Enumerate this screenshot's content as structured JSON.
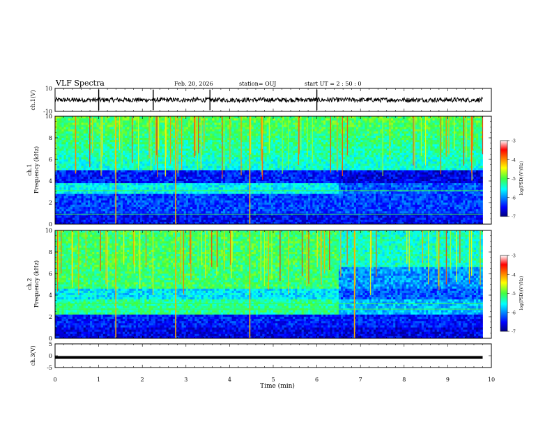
{
  "header": {
    "title": "VLF Spectra",
    "date": "Feb. 20, 2026",
    "station": "station= OUJ",
    "start": "start UT =  2 : 50 : 0"
  },
  "colors": {
    "background": "#ffffff",
    "axis": "#000000",
    "spectrogram_floor": "#000080"
  },
  "chart_data": [
    {
      "type": "line",
      "name": "waveform",
      "ylabel": "ch.1(V)",
      "ylim": [
        -10,
        10
      ],
      "yticks": [
        "10",
        "-10"
      ],
      "baseline": 0,
      "xlim": [
        0,
        10
      ],
      "spike_times": [
        1.0,
        2.25,
        3.55,
        6.0
      ],
      "grid": false
    },
    {
      "type": "heatmap",
      "name": "ch.1 spectrogram",
      "ylabel_line1": "ch.1",
      "ylabel_line2": "Frequency (kHz)",
      "ylim": [
        0,
        10
      ],
      "yticks": [
        "0",
        "2",
        "4",
        "6",
        "8",
        "10"
      ],
      "xlim": [
        0,
        9.8
      ],
      "colorbar_label": "log(PSD)(V²/Hz)",
      "colorbar_ticks": [
        "-3",
        "-4",
        "-5",
        "-6",
        "-7"
      ],
      "colorbar_range": [
        -7,
        -3
      ],
      "transition_time": 6.5,
      "bright_lines_time": [
        1.38,
        2.75,
        4.45
      ],
      "bright_lines_freq": [
        3.1,
        0.9
      ]
    },
    {
      "type": "heatmap",
      "name": "ch.2 spectrogram",
      "ylabel_line1": "ch.2",
      "ylabel_line2": "Frequency (kHz)",
      "ylim": [
        0,
        10
      ],
      "yticks": [
        "0",
        "2",
        "4",
        "6",
        "8",
        "10"
      ],
      "xlim": [
        0,
        9.8
      ],
      "colorbar_label": "log(PSD)(V²/Hz)",
      "colorbar_ticks": [
        "-3",
        "-4",
        "-5",
        "-6",
        "-7"
      ],
      "colorbar_range": [
        -7,
        -3
      ],
      "transition_time": 6.5,
      "bright_lines_time": [
        1.38,
        2.75,
        4.45,
        6.85
      ],
      "bright_lines_freq": [
        3.2,
        2.7
      ]
    },
    {
      "type": "line",
      "name": "ch.3 waveform",
      "ylabel": "ch.3(V)",
      "ylim": [
        -5,
        5
      ],
      "yticks": [
        "5",
        "0",
        "-5"
      ],
      "baseline": 0,
      "xlim": [
        0,
        10
      ]
    }
  ],
  "xaxis": {
    "label": "Time (min)",
    "ticks": [
      "0",
      "1",
      "2",
      "3",
      "4",
      "5",
      "6",
      "7",
      "8",
      "9",
      "10"
    ],
    "xlim": [
      0,
      10
    ]
  }
}
